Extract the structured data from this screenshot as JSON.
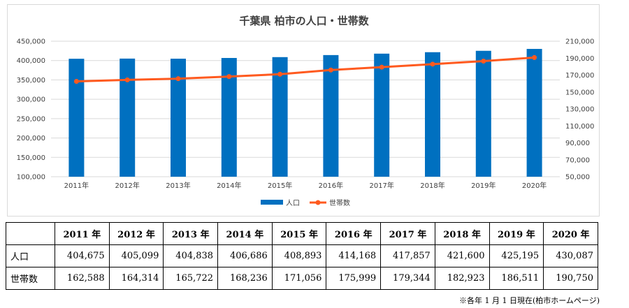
{
  "chart_data": {
    "type": "bar",
    "title": "千葉県 柏市の人口・世帯数",
    "categories": [
      "2011年",
      "2012年",
      "2013年",
      "2014年",
      "2015年",
      "2016年",
      "2017年",
      "2018年",
      "2019年",
      "2020年"
    ],
    "series": [
      {
        "name": "人口",
        "type": "bar",
        "axis": "left",
        "color": "#0070C0",
        "values": [
          404675,
          405099,
          404838,
          406686,
          408893,
          414168,
          417857,
          421600,
          425195,
          430087
        ]
      },
      {
        "name": "世帯数",
        "type": "line",
        "axis": "right",
        "color": "#FF5A1F",
        "values": [
          162588,
          164314,
          165722,
          168236,
          171056,
          175999,
          179344,
          182923,
          186511,
          190750
        ]
      }
    ],
    "y_left": {
      "min": 100000,
      "max": 450000,
      "ticks": [
        "100,000",
        "150,000",
        "200,000",
        "250,000",
        "300,000",
        "350,000",
        "400,000",
        "450,000"
      ]
    },
    "y_right": {
      "min": 50000,
      "max": 210000,
      "ticks": [
        "50,000",
        "70,000",
        "90,000",
        "110,000",
        "130,000",
        "150,000",
        "170,000",
        "190,000",
        "210,000"
      ]
    },
    "grid": true,
    "legend_position": "bottom"
  },
  "table": {
    "headers": [
      "",
      "2011 年",
      "2012 年",
      "2013 年",
      "2014 年",
      "2015 年",
      "2016 年",
      "2017 年",
      "2018 年",
      "2019 年",
      "2020 年"
    ],
    "rows": [
      {
        "label": "人口",
        "values": [
          "404,675",
          "405,099",
          "404,838",
          "406,686",
          "408,893",
          "414,168",
          "417,857",
          "421,600",
          "425,195",
          "430,087"
        ]
      },
      {
        "label": "世帯数",
        "values": [
          "162,588",
          "164,314",
          "165,722",
          "168,236",
          "171,056",
          "175,999",
          "179,344",
          "182,923",
          "186,511",
          "190,750"
        ]
      }
    ]
  },
  "footnote": "※各年 1 月 1 日現在(柏市ホームページ)"
}
